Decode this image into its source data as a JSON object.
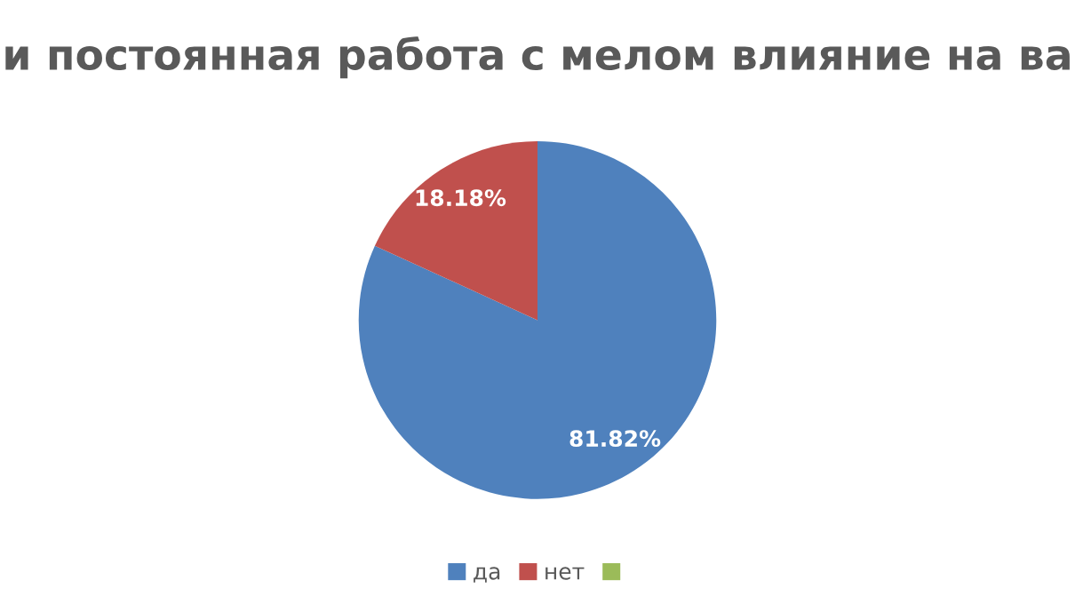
{
  "chart_data": {
    "type": "pie",
    "title": "и постоянная работа с мелом влияние на ва",
    "categories": [
      "да",
      "нет",
      null
    ],
    "values": [
      81.82,
      18.18,
      0
    ],
    "colors": [
      "#4f81bd",
      "#c0504d",
      "#9bbb59"
    ],
    "value_labels": [
      "81.82%",
      "18.18%",
      null
    ],
    "legend": "bottom"
  }
}
